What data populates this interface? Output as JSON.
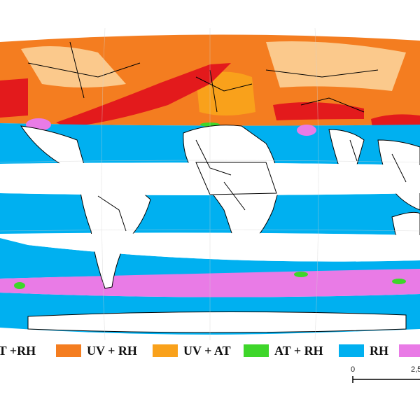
{
  "legend": {
    "items": [
      {
        "label": "AT +RH",
        "color": "#e31a1c"
      },
      {
        "label": "UV + RH",
        "color": "#f47d20"
      },
      {
        "label": "UV + AT",
        "color": "#f9a11b"
      },
      {
        "label": "AT + RH",
        "color": "#3ed62a"
      },
      {
        "label": "RH",
        "color": "#00b0f0"
      },
      {
        "label": "",
        "color": "#e97be6"
      }
    ]
  },
  "scale": {
    "start": "0",
    "next": "2,5"
  },
  "colors": {
    "ocean_blue": "#00b0f0",
    "land": "#ffffff",
    "orange": "#f47d20",
    "light_orange": "#fbc98c",
    "red": "#e31a1c",
    "magenta": "#e97be6",
    "green": "#3ed62a",
    "border": "#000000"
  }
}
